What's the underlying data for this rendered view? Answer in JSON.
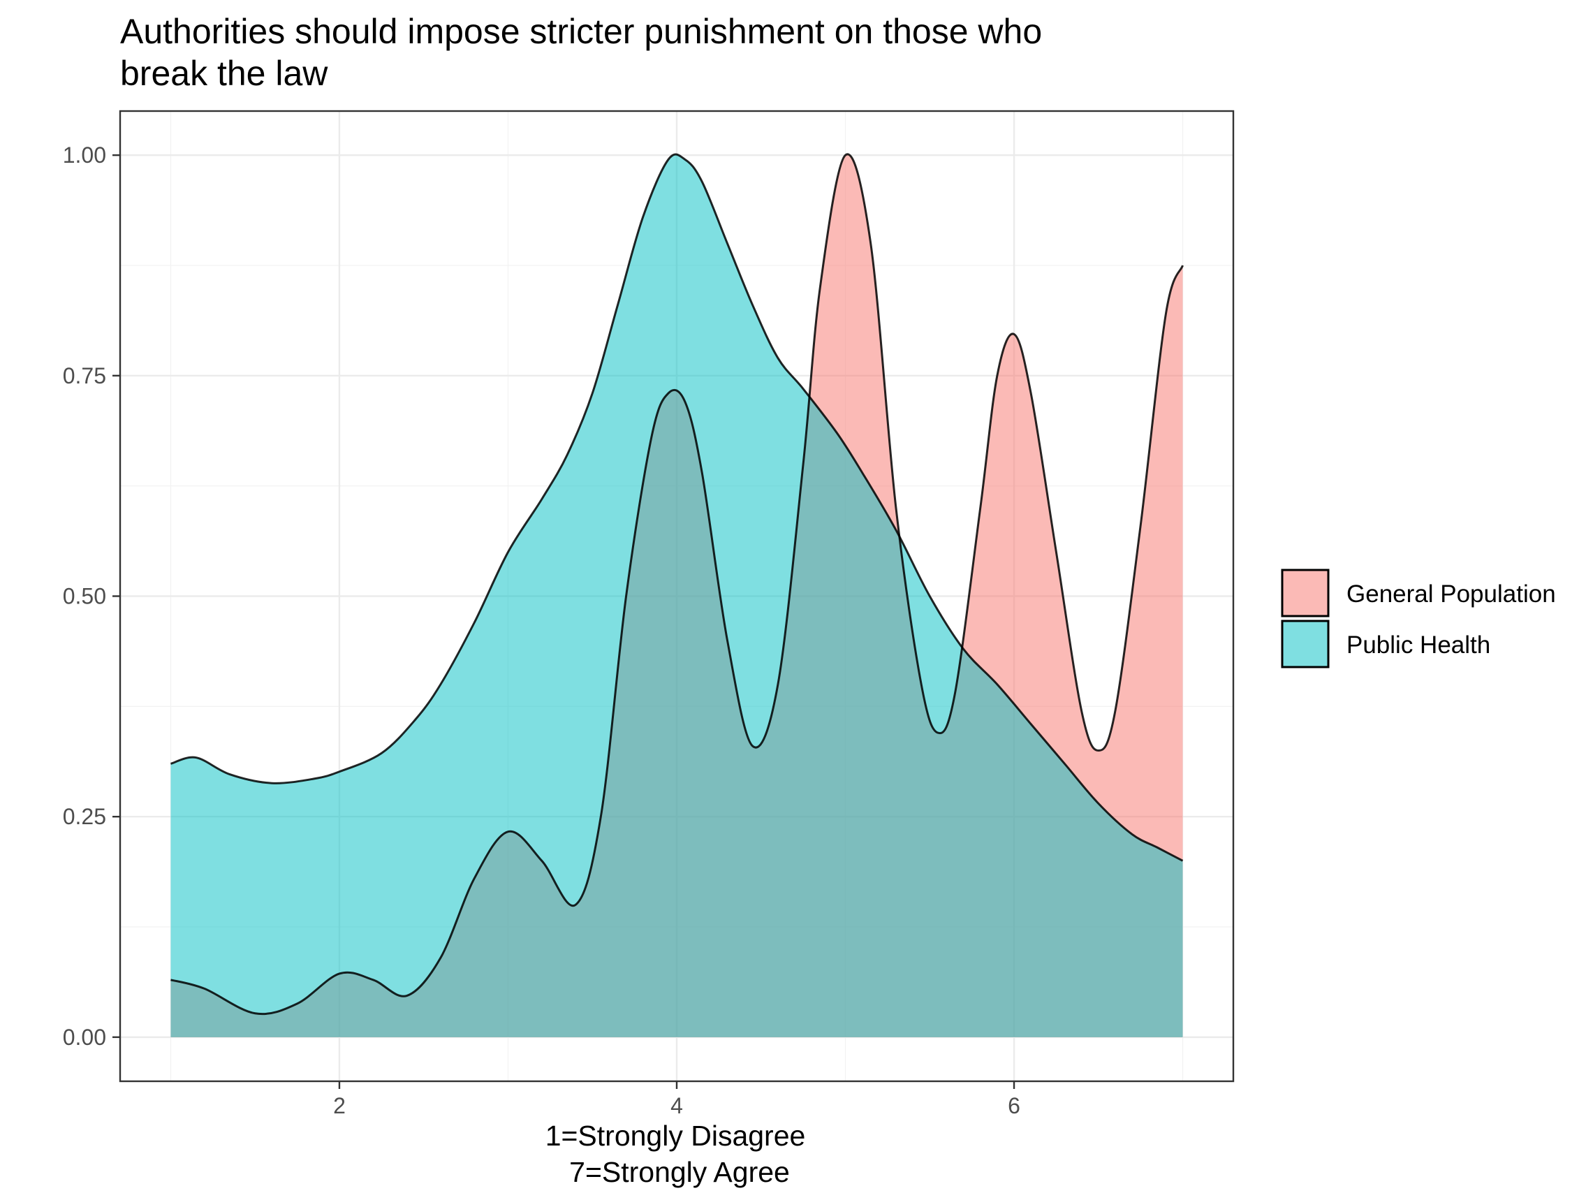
{
  "chart_data": {
    "type": "area",
    "title_lines": [
      "Authorities should impose stricter punishment on those who",
      "break the law"
    ],
    "xlabel_lines": [
      "1=Strongly Disagree",
      "7=Strongly Agree"
    ],
    "ylabel": "",
    "xlim": [
      0.7,
      7.3
    ],
    "ylim": [
      -0.05,
      1.05
    ],
    "x_ticks": [
      2,
      4,
      6
    ],
    "x_tick_labels": [
      "2",
      "4",
      "6"
    ],
    "y_ticks": [
      0,
      0.25,
      0.5,
      0.75,
      1.0
    ],
    "y_tick_labels": [
      "0.00",
      "0.25",
      "0.50",
      "0.75",
      "1.00"
    ],
    "grid": true,
    "legend_position": "right",
    "series": [
      {
        "name": "General Population",
        "color": "#F8766D",
        "points": [
          [
            1.0,
            0.065
          ],
          [
            1.2,
            0.055
          ],
          [
            1.5,
            0.027
          ],
          [
            1.75,
            0.038
          ],
          [
            2.0,
            0.072
          ],
          [
            2.2,
            0.065
          ],
          [
            2.4,
            0.047
          ],
          [
            2.6,
            0.09
          ],
          [
            2.8,
            0.18
          ],
          [
            3.0,
            0.233
          ],
          [
            3.2,
            0.2
          ],
          [
            3.4,
            0.15
          ],
          [
            3.55,
            0.25
          ],
          [
            3.7,
            0.5
          ],
          [
            3.85,
            0.68
          ],
          [
            3.95,
            0.73
          ],
          [
            4.05,
            0.72
          ],
          [
            4.15,
            0.64
          ],
          [
            4.3,
            0.45
          ],
          [
            4.45,
            0.33
          ],
          [
            4.6,
            0.4
          ],
          [
            4.75,
            0.65
          ],
          [
            4.85,
            0.85
          ],
          [
            5.0,
            1.0
          ],
          [
            5.15,
            0.9
          ],
          [
            5.3,
            0.6
          ],
          [
            5.45,
            0.4
          ],
          [
            5.55,
            0.345
          ],
          [
            5.65,
            0.39
          ],
          [
            5.8,
            0.6
          ],
          [
            5.9,
            0.75
          ],
          [
            6.0,
            0.797
          ],
          [
            6.1,
            0.73
          ],
          [
            6.25,
            0.55
          ],
          [
            6.4,
            0.37
          ],
          [
            6.5,
            0.325
          ],
          [
            6.6,
            0.37
          ],
          [
            6.75,
            0.58
          ],
          [
            6.9,
            0.82
          ],
          [
            7.0,
            0.875
          ]
        ]
      },
      {
        "name": "Public Health",
        "color": "#00BFC4",
        "points": [
          [
            1.0,
            0.31
          ],
          [
            1.15,
            0.317
          ],
          [
            1.35,
            0.298
          ],
          [
            1.6,
            0.288
          ],
          [
            1.85,
            0.293
          ],
          [
            2.0,
            0.301
          ],
          [
            2.25,
            0.322
          ],
          [
            2.45,
            0.36
          ],
          [
            2.6,
            0.4
          ],
          [
            2.8,
            0.47
          ],
          [
            3.0,
            0.55
          ],
          [
            3.2,
            0.61
          ],
          [
            3.35,
            0.66
          ],
          [
            3.5,
            0.73
          ],
          [
            3.65,
            0.83
          ],
          [
            3.8,
            0.93
          ],
          [
            3.95,
            0.995
          ],
          [
            4.05,
            0.995
          ],
          [
            4.15,
            0.97
          ],
          [
            4.3,
            0.9
          ],
          [
            4.45,
            0.83
          ],
          [
            4.6,
            0.77
          ],
          [
            4.75,
            0.735
          ],
          [
            4.95,
            0.685
          ],
          [
            5.1,
            0.64
          ],
          [
            5.3,
            0.575
          ],
          [
            5.5,
            0.5
          ],
          [
            5.7,
            0.44
          ],
          [
            5.9,
            0.4
          ],
          [
            6.1,
            0.355
          ],
          [
            6.3,
            0.31
          ],
          [
            6.5,
            0.265
          ],
          [
            6.7,
            0.23
          ],
          [
            6.85,
            0.215
          ],
          [
            7.0,
            0.2
          ]
        ]
      }
    ]
  }
}
